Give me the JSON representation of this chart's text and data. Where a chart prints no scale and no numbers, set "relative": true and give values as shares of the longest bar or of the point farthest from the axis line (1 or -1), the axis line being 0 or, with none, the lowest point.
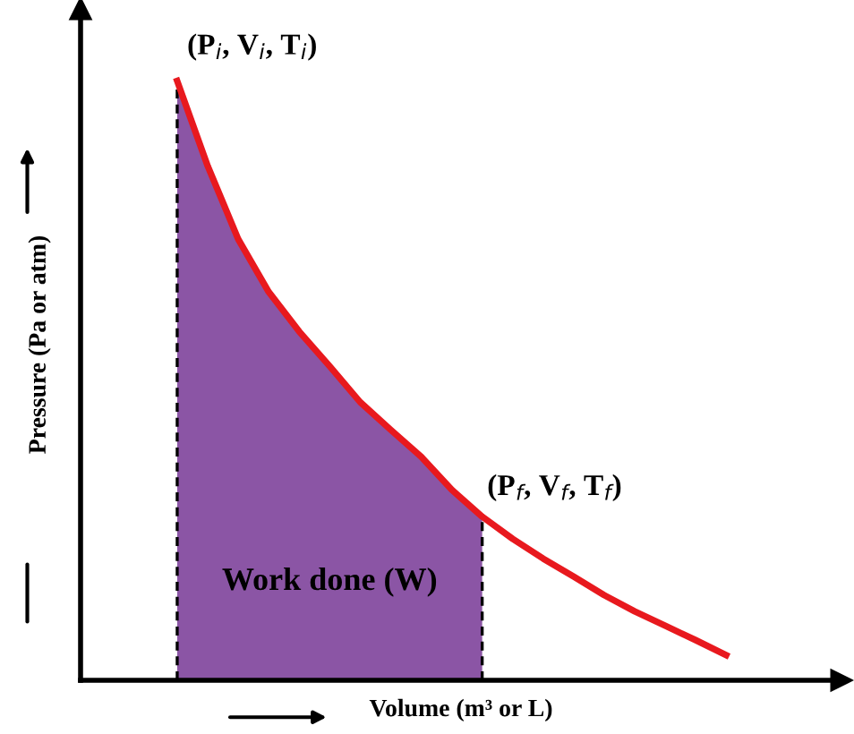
{
  "chart_data": {
    "type": "line",
    "relative": true,
    "xlabel": "Volume (m³ or L)",
    "ylabel": "Pressure (Pa or atm)",
    "categories": [
      null,
      null,
      null,
      null,
      null,
      null,
      null,
      null,
      null,
      null,
      null,
      null,
      null,
      null,
      null,
      null,
      null,
      null,
      null
    ],
    "series": [
      {
        "color": "#e8191e",
        "values": [
          1.0,
          0.858,
          0.736,
          0.648,
          0.582,
          0.524,
          0.464,
          0.418,
          0.373,
          0.318,
          0.273,
          0.236,
          0.203,
          0.173,
          0.142,
          0.115,
          0.091,
          0.067,
          0.042
        ]
      },
      {
        "type": "area",
        "color": "#8b55a5",
        "values": [
          1.0,
          0.858,
          0.736,
          0.648,
          0.582,
          0.524,
          0.464,
          0.418,
          0.373,
          0.318,
          0.273,
          null,
          null,
          null,
          null,
          null,
          null,
          null,
          null
        ]
      }
    ],
    "annotations": [
      "(P$_{i}$, V$_{i}$, T$_{i}$)",
      "(P$_{f}$, V$_{f}$, T$_{f}$)",
      "Work done (W)"
    ],
    "marker": "none",
    "line_style": "solid"
  }
}
